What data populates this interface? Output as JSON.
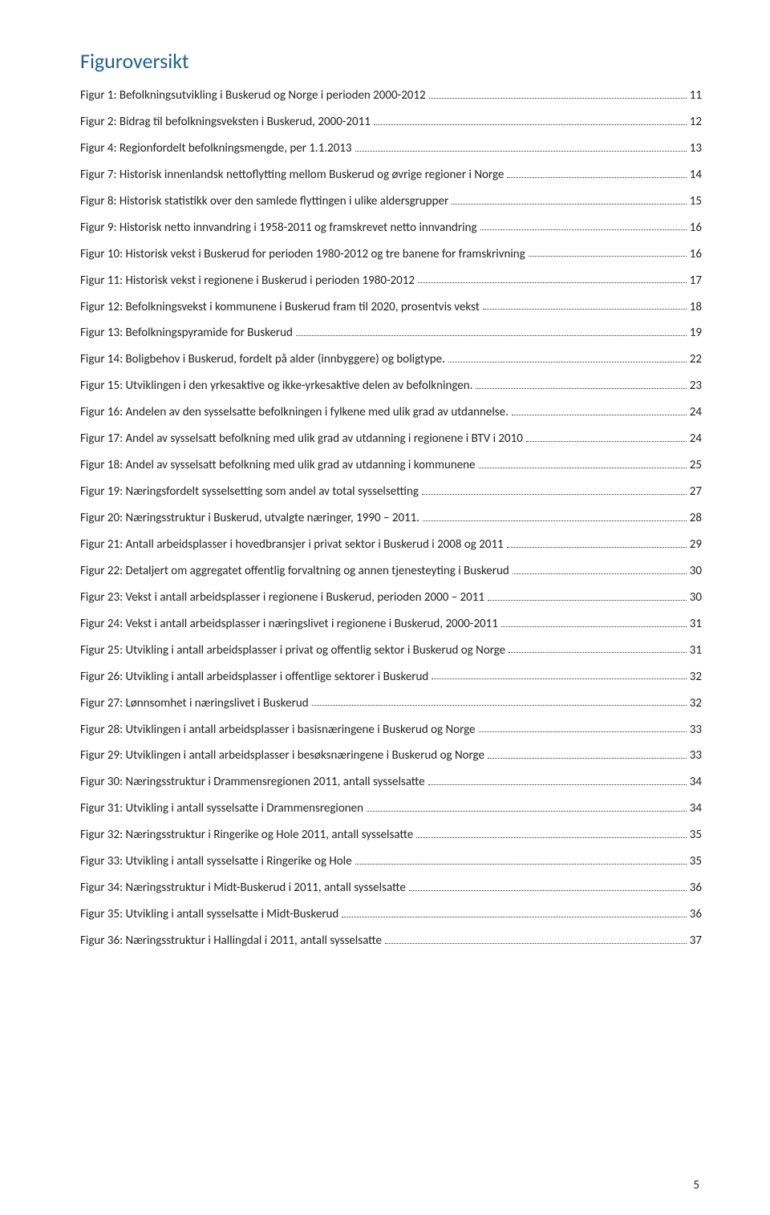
{
  "title": "Figuroversikt",
  "page_number": "5",
  "colors": {
    "title_color": "#1f6091",
    "text_color": "#222222",
    "background": "#ffffff"
  },
  "typography": {
    "title_fontsize": 26,
    "body_fontsize": 15,
    "font_family": "Calibri"
  },
  "toc_entries": [
    {
      "label": "Figur 1: Befolkningsutvikling i Buskerud og Norge i perioden 2000-2012",
      "page": "11"
    },
    {
      "label": "Figur 2: Bidrag til befolkningsveksten i Buskerud, 2000-2011",
      "page": "12"
    },
    {
      "label": "Figur 4: Regionfordelt befolkningsmengde, per 1.1.2013",
      "page": "13"
    },
    {
      "label": "Figur 7: Historisk innenlandsk nettoflytting mellom Buskerud og øvrige regioner i Norge",
      "page": "14"
    },
    {
      "label": "Figur 8: Historisk statistikk over den samlede flyttingen i ulike aldersgrupper",
      "page": "15"
    },
    {
      "label": "Figur 9: Historisk netto innvandring i 1958-2011 og framskrevet netto innvandring",
      "page": "16"
    },
    {
      "label": "Figur 10: Historisk vekst i Buskerud for perioden 1980-2012 og tre banene for framskrivning",
      "page": "16"
    },
    {
      "label": "Figur 11: Historisk vekst i regionene i Buskerud i perioden 1980-2012",
      "page": "17"
    },
    {
      "label": "Figur 12: Befolkningsvekst i kommunene i Buskerud fram til 2020, prosentvis vekst",
      "page": "18"
    },
    {
      "label": "Figur 13: Befolkningspyramide for Buskerud",
      "page": "19"
    },
    {
      "label": "Figur 14: Boligbehov i Buskerud, fordelt på alder (innbyggere) og boligtype.",
      "page": "22"
    },
    {
      "label": "Figur 15: Utviklingen i den yrkesaktive og  ikke-yrkesaktive delen av befolkningen.",
      "page": "23"
    },
    {
      "label": "Figur 16: Andelen av den sysselsatte befolkningen i fylkene med ulik grad av utdannelse.",
      "page": "24"
    },
    {
      "label": "Figur 17: Andel av sysselsatt befolkning med ulik grad av utdanning i regionene i BTV i 2010",
      "page": "24"
    },
    {
      "label": "Figur 18: Andel av sysselsatt befolkning med ulik grad av utdanning i kommunene",
      "page": "25"
    },
    {
      "label": "Figur 19: Næringsfordelt sysselsetting som andel av total sysselsetting",
      "page": "27"
    },
    {
      "label": "Figur 20: Næringsstruktur i Buskerud, utvalgte næringer, 1990 – 2011.",
      "page": "28"
    },
    {
      "label": "Figur 21: Antall arbeidsplasser i hovedbransjer i privat sektor i Buskerud i 2008 og 2011",
      "page": "29"
    },
    {
      "label": "Figur 22: Detaljert om aggregatet offentlig forvaltning og annen tjenesteyting i Buskerud",
      "page": "30"
    },
    {
      "label": "Figur 23: Vekst i antall arbeidsplasser i regionene i Buskerud, perioden 2000 – 2011",
      "page": "30"
    },
    {
      "label": "Figur 24: Vekst i antall arbeidsplasser i næringslivet i regionene i Buskerud, 2000-2011",
      "page": "31"
    },
    {
      "label": "Figur 25: Utvikling i antall arbeidsplasser i privat og offentlig sektor i Buskerud og Norge",
      "page": "31"
    },
    {
      "label": "Figur 26: Utvikling i antall arbeidsplasser i offentlige sektorer i Buskerud",
      "page": "32"
    },
    {
      "label": "Figur 27: Lønnsomhet i næringslivet i Buskerud",
      "page": "32"
    },
    {
      "label": "Figur 28: Utviklingen i antall arbeidsplasser i basisnæringene i Buskerud og Norge",
      "page": "33"
    },
    {
      "label": "Figur 29: Utviklingen i antall arbeidsplasser i besøksnæringene i Buskerud og Norge",
      "page": "33"
    },
    {
      "label": "Figur 30: Næringsstruktur i Drammensregionen 2011, antall sysselsatte",
      "page": "34"
    },
    {
      "label": "Figur 31: Utvikling i antall sysselsatte i Drammensregionen",
      "page": "34"
    },
    {
      "label": "Figur 32: Næringsstruktur i Ringerike og Hole 2011, antall sysselsatte",
      "page": "35"
    },
    {
      "label": "Figur 33: Utvikling i antall sysselsatte i Ringerike og Hole",
      "page": "35"
    },
    {
      "label": "Figur 34: Næringsstruktur i Midt-Buskerud i 2011, antall sysselsatte",
      "page": "36"
    },
    {
      "label": "Figur 35: Utvikling i antall sysselsatte i Midt-Buskerud",
      "page": "36"
    },
    {
      "label": "Figur 36: Næringsstruktur i Hallingdal i 2011, antall sysselsatte",
      "page": "37"
    }
  ]
}
